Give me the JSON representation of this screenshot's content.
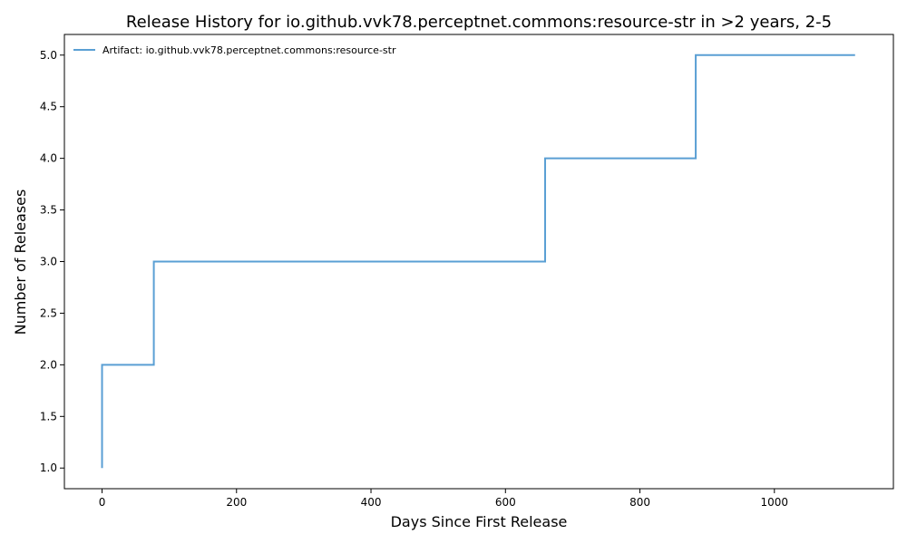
{
  "chart_data": {
    "type": "line",
    "step": "post",
    "title": "Release History for io.github.vvk78.perceptnet.commons:resource-str in >2 years, 2-5",
    "xlabel": "Days Since First Release",
    "ylabel": "Number of Releases",
    "xlim": [
      -56,
      1177
    ],
    "ylim": [
      0.8,
      5.2
    ],
    "xticks": [
      0,
      200,
      400,
      600,
      800,
      1000
    ],
    "xtick_labels": [
      "0",
      "200",
      "400",
      "600",
      "800",
      "1000"
    ],
    "yticks": [
      1.0,
      1.5,
      2.0,
      2.5,
      3.0,
      3.5,
      4.0,
      4.5,
      5.0
    ],
    "ytick_labels": [
      "1.0",
      "1.5",
      "2.0",
      "2.5",
      "3.0",
      "3.5",
      "4.0",
      "4.5",
      "5.0"
    ],
    "grid": false,
    "legend_position": "top-left",
    "series": [
      {
        "name": "Artifact: io.github.vvk78.perceptnet.commons:resource-str",
        "color": "#5a9fd4",
        "x": [
          0,
          0,
          77,
          659,
          883,
          1120
        ],
        "y": [
          1,
          2,
          3,
          4,
          5,
          5
        ]
      }
    ]
  }
}
